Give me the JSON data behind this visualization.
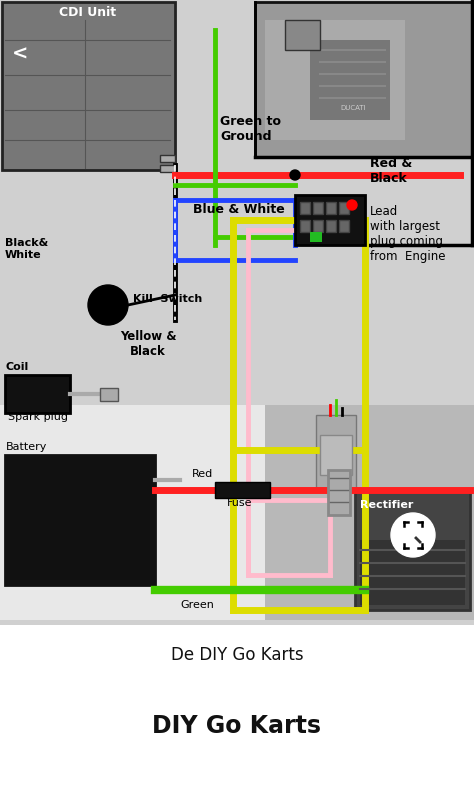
{
  "title": "DIY Go Karts",
  "subtitle": "De DIY Go Karts",
  "bg_color": "#ffffff",
  "labels": {
    "cdi": "CDI Unit",
    "green_to_ground": "Green to\nGround",
    "blue_white": "Blue & White",
    "red_black": "Red &\nBlack",
    "black_white": "Black&\nWhite",
    "kill_switch": "Kill  Switch",
    "coil": "Coil",
    "spark_plug": "Spark plug",
    "battery": "Battery",
    "yellow_black": "Yellow &\nBlack",
    "red": "Red",
    "fuse": "Fuse",
    "green": "Green",
    "lead_engine": "Lead\nwith largest\nplug coming\nfrom  Engine",
    "rectifier": "Rectifier"
  },
  "colors": {
    "red": "#ff2020",
    "green": "#22aa22",
    "green_bright": "#44cc00",
    "blue": "#2244ff",
    "yellow": "#dddd00",
    "pink": "#ffbbcc",
    "black": "#000000",
    "white": "#ffffff",
    "gray_bg": "#c8c8c8",
    "gray_mid": "#999999",
    "gray_dark": "#555555",
    "cdi_gray": "#888888",
    "diagram_bg": "#d0d0d0",
    "white_panel": "#e8e8e8"
  },
  "lw_thick": 5,
  "lw_med": 3.5,
  "lw_thin": 2
}
